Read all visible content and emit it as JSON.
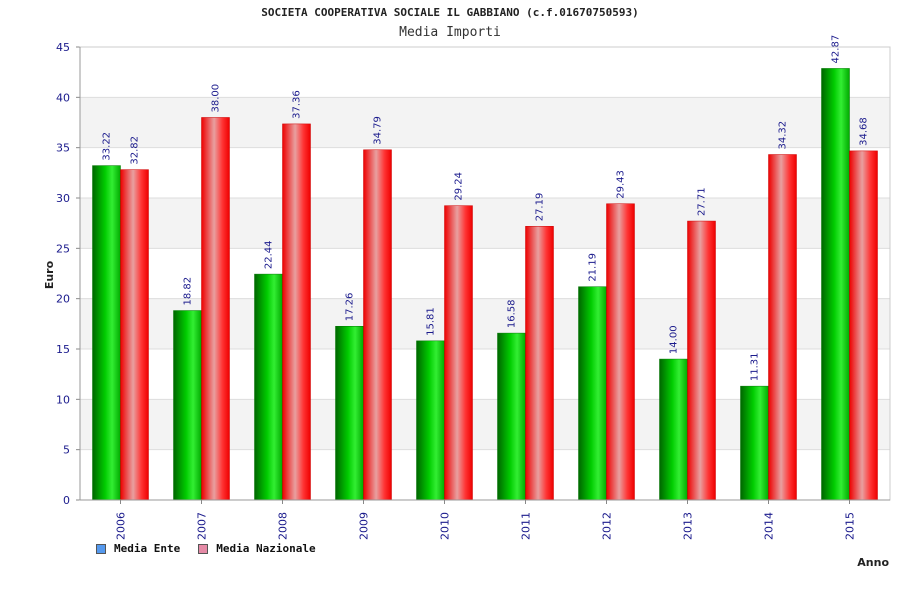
{
  "chart_data": {
    "type": "bar",
    "title": "SOCIETA COOPERATIVA SOCIALE IL GABBIANO (c.f.01670750593)",
    "subtitle": "Media Importi",
    "xlabel": "Anno",
    "ylabel": "Euro",
    "ylim": [
      0,
      45
    ],
    "yticks": [
      0,
      5,
      10,
      15,
      20,
      25,
      30,
      35,
      40,
      45
    ],
    "grid": true,
    "legend_position": "bottom-left",
    "categories": [
      "2006",
      "2007",
      "2008",
      "2009",
      "2010",
      "2011",
      "2012",
      "2013",
      "2014",
      "2015"
    ],
    "series": [
      {
        "name": "Media Ente",
        "color": "#00b000",
        "legend_color": "#5599ee",
        "values": [
          33.22,
          18.82,
          22.44,
          17.26,
          15.81,
          16.58,
          21.19,
          14.0,
          11.31,
          42.87
        ],
        "labels": [
          "33.22",
          "18.82",
          "22.44",
          "17.26",
          "15.81",
          "16.58",
          "21.19",
          "14.00",
          "11.31",
          "42.87"
        ]
      },
      {
        "name": "Media Nazionale",
        "color": "#ee1111",
        "legend_color": "#e58aa6",
        "values": [
          32.82,
          38.0,
          37.36,
          34.79,
          29.24,
          27.19,
          29.43,
          27.71,
          34.32,
          34.68
        ],
        "labels": [
          "32.82",
          "38.00",
          "37.36",
          "34.79",
          "29.24",
          "27.19",
          "29.43",
          "27.71",
          "34.32",
          "34.68"
        ]
      }
    ]
  }
}
